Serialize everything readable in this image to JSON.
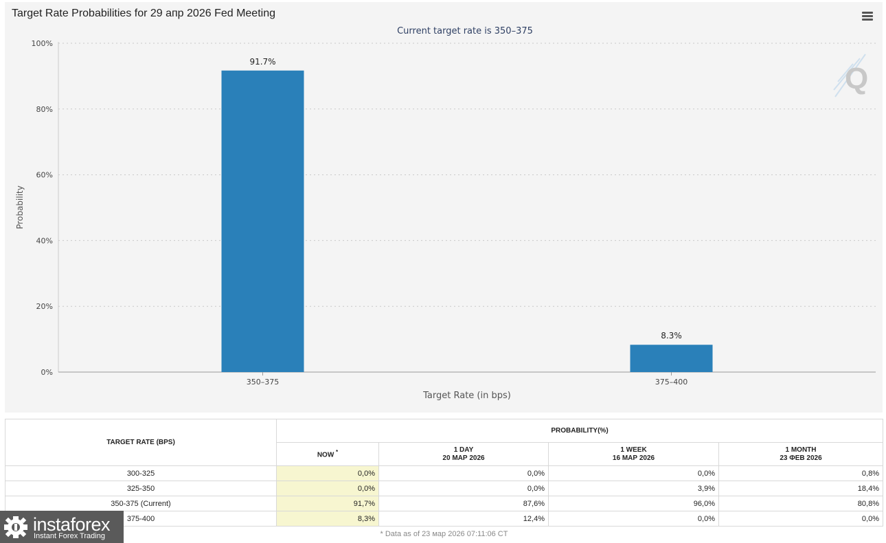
{
  "chart": {
    "title": "Target Rate Probabilities for 29 апр 2026 Fed Meeting",
    "menu_icon": "hamburger-menu-icon",
    "watermark_icon": "quikstrike-q-logo-icon"
  },
  "chart_data": {
    "type": "bar",
    "title": "Target Rate Probabilities for 29 апр 2026 Fed Meeting",
    "subtitle": "Current target rate is 350–375",
    "categories": [
      "350–375",
      "375–400"
    ],
    "values": [
      91.7,
      8.3
    ],
    "value_labels": [
      "91.7%",
      "8.3%"
    ],
    "xlabel": "Target Rate (in bps)",
    "ylabel": "Probability",
    "ylim": [
      0,
      100
    ],
    "yticks": [
      0,
      20,
      40,
      60,
      80,
      100
    ],
    "ytick_labels": [
      "0%",
      "20%",
      "40%",
      "60%",
      "80%",
      "100%"
    ],
    "grid": true,
    "bar_color": "#2a80b9"
  },
  "table": {
    "header_target": "TARGET RATE (BPS)",
    "header_probability": "PROBABILITY(%)",
    "col_now": "NOW",
    "col_now_mark": "*",
    "col_1day_label": "1 DAY",
    "col_1day_date": "20 МАР 2026",
    "col_1week_label": "1 WEEK",
    "col_1week_date": "16 МАР 2026",
    "col_1month_label": "1 MONTH",
    "col_1month_date": "23 ФЕВ 2026",
    "rows": [
      {
        "rate": "300-325",
        "now": "0,0%",
        "day": "0,0%",
        "week": "0,0%",
        "month": "0,8%"
      },
      {
        "rate": "325-350",
        "now": "0,0%",
        "day": "0,0%",
        "week": "3,9%",
        "month": "18,4%"
      },
      {
        "rate": "350-375 (Current)",
        "now": "91,7%",
        "day": "87,6%",
        "week": "96,0%",
        "month": "80,8%"
      },
      {
        "rate": "375-400",
        "now": "8,3%",
        "day": "12,4%",
        "week": "0,0%",
        "month": "0,0%"
      }
    ],
    "footnote": "* Data as of 23 мар 2026 07:11:06 CT"
  },
  "brand": {
    "name": "instaforex",
    "tagline": "Instant Forex Trading",
    "icon": "instaforex-gear-logo-icon"
  }
}
